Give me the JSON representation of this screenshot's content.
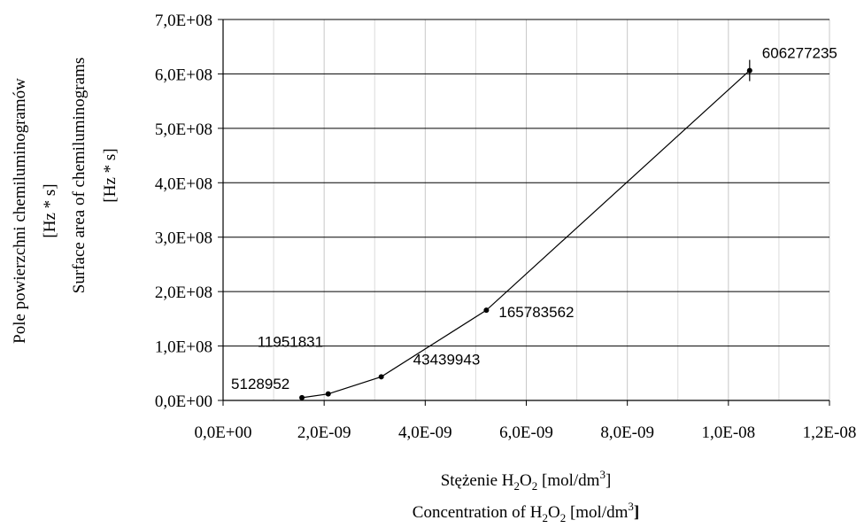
{
  "chart_data": {
    "type": "scatter",
    "x_axis": {
      "label_pl": {
        "prefix": "Stężenie H",
        "sub1": "2",
        "mid": "O",
        "sub2": "2",
        "suffix": " [mol/dm",
        "sup": "3",
        "close": "]"
      },
      "label_en": {
        "prefix": "Concentration of H",
        "sub1": "2",
        "mid": "O",
        "sub2": "2",
        "suffix": " [mol/dm",
        "sup": "3",
        "close": "]"
      },
      "range": [
        0,
        1.2e-08
      ],
      "ticks": [
        0,
        2e-09,
        4e-09,
        6e-09,
        8e-09,
        1e-08,
        1.2e-08
      ],
      "tick_labels": [
        "0,0E+00",
        "2,0E-09",
        "4,0E-09",
        "6,0E-09",
        "8,0E-09",
        "1,0E-08",
        "1,2E-08"
      ],
      "gridlines": true
    },
    "y_axis": {
      "label_pl_line1": "Pole powierzchni chemiluminogramów",
      "label_pl_line2": "[Hz * s]",
      "label_en_line1": "Surface area of chemiluminograms",
      "label_en_line2": "[Hz * s]",
      "range": [
        0,
        700000000.0
      ],
      "ticks": [
        0,
        100000000.0,
        200000000.0,
        300000000.0,
        400000000.0,
        500000000.0,
        600000000.0,
        700000000.0
      ],
      "tick_labels": [
        "0,0E+00",
        "1,0E+08",
        "2,0E+08",
        "3,0E+08",
        "4,0E+08",
        "5,0E+08",
        "6,0E+08",
        "7,0E+08"
      ],
      "gridlines": true
    },
    "series": [
      {
        "points": [
          {
            "x": 1.56e-09,
            "y": 5128952,
            "label": "5128952"
          },
          {
            "x": 2.08e-09,
            "y": 11951831,
            "label": "11951831"
          },
          {
            "x": 3.13e-09,
            "y": 43439943,
            "label": "43439943"
          },
          {
            "x": 5.21e-09,
            "y": 165783562,
            "label": "165783562"
          },
          {
            "x": 1.042e-08,
            "y": 606277235,
            "label": "606277235"
          }
        ],
        "line": true,
        "color": "#000000"
      }
    ]
  }
}
